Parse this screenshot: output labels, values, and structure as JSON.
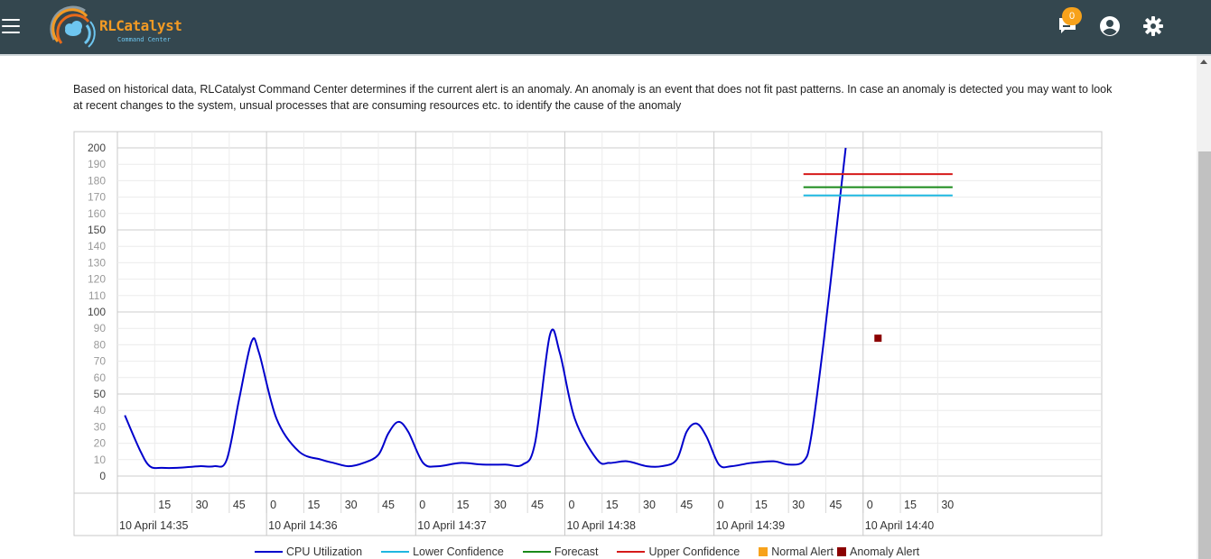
{
  "header": {
    "logo_title": "RLCatalyst",
    "logo_subtitle": "Command Center",
    "notification_count": "0",
    "icons": [
      "menu-icon",
      "notifications-icon",
      "account-icon",
      "settings-icon"
    ]
  },
  "description": "Based on historical data, RLCatalyst Command Center determines if the current alert is an anomaly. An anomaly is an event that does not fit past patterns. In case an anomaly is detected you may want to look at recent changes to the system, unsual processes that are consuming resources etc. to identify the cause of the anomaly",
  "colors": {
    "header_bg": "#34474f",
    "cpu": "#0000cc",
    "lower": "#1fb7e0",
    "forecast": "#1a8a1a",
    "upper": "#d61a1a",
    "normal_alert": "#f7a21b",
    "anomaly_alert": "#8b0000"
  },
  "legend": [
    {
      "label": "CPU Utilization",
      "kind": "line",
      "color": "#0000cc"
    },
    {
      "label": "Lower Confidence",
      "kind": "line",
      "color": "#1fb7e0"
    },
    {
      "label": "Forecast",
      "kind": "line",
      "color": "#1a8a1a"
    },
    {
      "label": "Upper Confidence",
      "kind": "line",
      "color": "#d61a1a"
    },
    {
      "label": "Normal Alert",
      "kind": "square",
      "color": "#f7a21b"
    },
    {
      "label": "Anomaly Alert",
      "kind": "square",
      "color": "#8b0000"
    }
  ],
  "chart_data": {
    "type": "line",
    "ylim": [
      0,
      200
    ],
    "y_ticks": [
      0,
      10,
      20,
      30,
      40,
      50,
      60,
      70,
      80,
      90,
      100,
      110,
      120,
      130,
      140,
      150,
      160,
      170,
      180,
      190,
      200
    ],
    "x_range_seconds": [
      0,
      396
    ],
    "minor_ticks": [
      {
        "t": 15,
        "label": "15"
      },
      {
        "t": 30,
        "label": "30"
      },
      {
        "t": 45,
        "label": "45"
      },
      {
        "t": 60,
        "label": "0"
      },
      {
        "t": 75,
        "label": "15"
      },
      {
        "t": 90,
        "label": "30"
      },
      {
        "t": 105,
        "label": "45"
      },
      {
        "t": 120,
        "label": "0"
      },
      {
        "t": 135,
        "label": "15"
      },
      {
        "t": 150,
        "label": "30"
      },
      {
        "t": 165,
        "label": "45"
      },
      {
        "t": 180,
        "label": "0"
      },
      {
        "t": 195,
        "label": "15"
      },
      {
        "t": 210,
        "label": "30"
      },
      {
        "t": 225,
        "label": "45"
      },
      {
        "t": 240,
        "label": "0"
      },
      {
        "t": 255,
        "label": "15"
      },
      {
        "t": 270,
        "label": "30"
      },
      {
        "t": 285,
        "label": "45"
      },
      {
        "t": 300,
        "label": "0"
      },
      {
        "t": 315,
        "label": "15"
      },
      {
        "t": 330,
        "label": "30"
      }
    ],
    "major_ticks": [
      {
        "t": 0,
        "label": "10 April 14:35"
      },
      {
        "t": 60,
        "label": "10 April 14:36"
      },
      {
        "t": 120,
        "label": "10 April 14:37"
      },
      {
        "t": 180,
        "label": "10 April 14:38"
      },
      {
        "t": 240,
        "label": "10 April 14:39"
      },
      {
        "t": 300,
        "label": "10 April 14:40"
      }
    ],
    "series": [
      {
        "name": "CPU Utilization",
        "color": "#0000cc",
        "points": [
          [
            3,
            37
          ],
          [
            9,
            16
          ],
          [
            13,
            6
          ],
          [
            18,
            5
          ],
          [
            24,
            5
          ],
          [
            33,
            6
          ],
          [
            39,
            6
          ],
          [
            44,
            10
          ],
          [
            49,
            47
          ],
          [
            54,
            82
          ],
          [
            57,
            75
          ],
          [
            64,
            35
          ],
          [
            73,
            15
          ],
          [
            82,
            10
          ],
          [
            87,
            8
          ],
          [
            93,
            6
          ],
          [
            99,
            8
          ],
          [
            105,
            13
          ],
          [
            109,
            26
          ],
          [
            113,
            33
          ],
          [
            117,
            27
          ],
          [
            123,
            8
          ],
          [
            129,
            6
          ],
          [
            138,
            8
          ],
          [
            147,
            7
          ],
          [
            156,
            7
          ],
          [
            163,
            7
          ],
          [
            168,
            20
          ],
          [
            174,
            86
          ],
          [
            178,
            75
          ],
          [
            184,
            35
          ],
          [
            193,
            10
          ],
          [
            198,
            8
          ],
          [
            205,
            9
          ],
          [
            213,
            6
          ],
          [
            219,
            6
          ],
          [
            225,
            10
          ],
          [
            229,
            27
          ],
          [
            233,
            32
          ],
          [
            237,
            24
          ],
          [
            242,
            7
          ],
          [
            247,
            6
          ],
          [
            255,
            8
          ],
          [
            264,
            9
          ],
          [
            270,
            7
          ],
          [
            276,
            9
          ],
          [
            279,
            23
          ],
          [
            284,
            80
          ],
          [
            290,
            160
          ],
          [
            293,
            200
          ]
        ]
      },
      {
        "name": "Upper Confidence",
        "color": "#d61a1a",
        "points": [
          [
            276,
            184
          ],
          [
            336,
            184
          ]
        ]
      },
      {
        "name": "Forecast",
        "color": "#1a8a1a",
        "points": [
          [
            276,
            176
          ],
          [
            336,
            176
          ]
        ]
      },
      {
        "name": "Lower Confidence",
        "color": "#1fb7e0",
        "points": [
          [
            276,
            171
          ],
          [
            336,
            171
          ]
        ]
      }
    ],
    "markers": [
      {
        "name": "Anomaly Alert",
        "color": "#8b0000",
        "t": 306,
        "y": 84
      }
    ]
  }
}
